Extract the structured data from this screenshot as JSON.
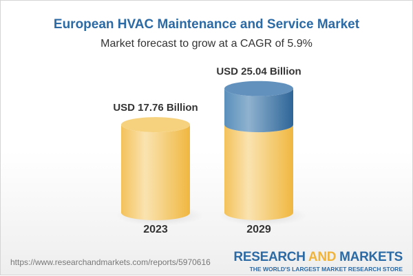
{
  "chart_data": {
    "type": "bar",
    "style": "3d-cylinder",
    "title": "European HVAC Maintenance and Service Market",
    "subtitle": "Market forecast to grow at a CAGR of 5.9%",
    "categories": [
      "2023",
      "2029"
    ],
    "values": [
      17.76,
      25.04
    ],
    "data_labels": [
      "USD 17.76 Billion",
      "USD 25.04 Billion"
    ],
    "unit": "USD Billion",
    "colors": {
      "base": "#f2c55c",
      "growth": "#4a80b0",
      "title": "#2b6aa5"
    }
  },
  "footer": {
    "url": "https://www.researchandmarkets.com/reports/5970616",
    "logo_line1_a": "RESEARCH ",
    "logo_line1_b": "AND",
    "logo_line1_c": " MARKETS",
    "logo_line2": "THE WORLD'S LARGEST MARKET RESEARCH STORE"
  }
}
